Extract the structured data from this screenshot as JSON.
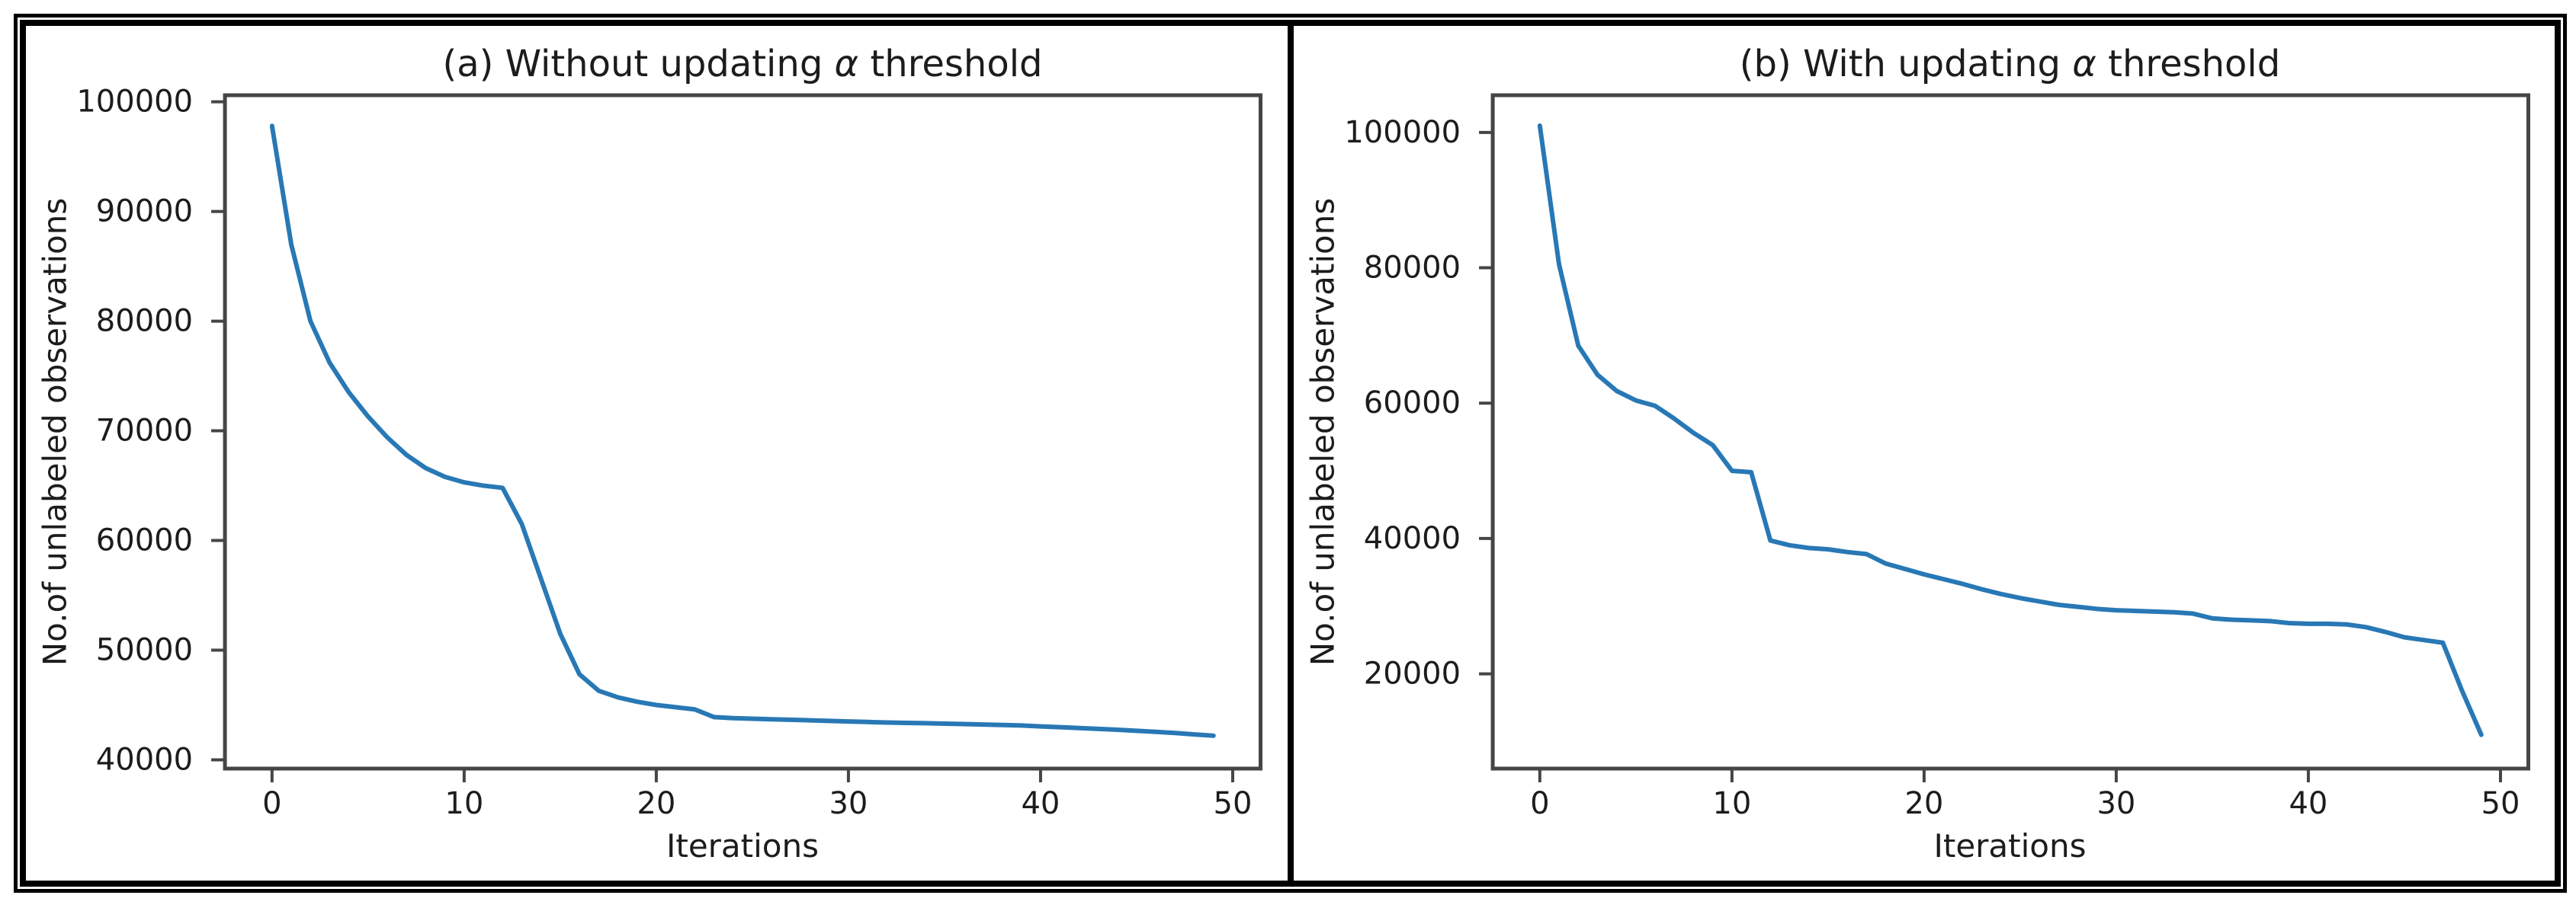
{
  "figure": {
    "background": "#ffffff",
    "outer_border_color": "#000000",
    "inner_border_color": "#000000",
    "divider_color": "#000000",
    "spine_color": "#454545",
    "tick_color": "#454545",
    "text_color": "#1c1c1c",
    "line_color": "#2878b5"
  },
  "chart_data": [
    {
      "type": "line",
      "panel_label": "a",
      "title": "(a) Without updating α threshold",
      "title_parts": {
        "prefix": "(a) Without updating ",
        "alpha": "α",
        "suffix": " threshold"
      },
      "xlabel": "Iterations",
      "ylabel": "No.of unlabeled observations",
      "xlim": [
        -2.45,
        51.45
      ],
      "ylim": [
        39200,
        100600
      ],
      "xticks": [
        0,
        10,
        20,
        30,
        40,
        50
      ],
      "yticks": [
        40000,
        50000,
        60000,
        70000,
        80000,
        90000,
        100000
      ],
      "grid": false,
      "legend": null,
      "x_start": 0,
      "x_step": 1,
      "y": [
        97800,
        87000,
        80000,
        76200,
        73500,
        71300,
        69400,
        67800,
        66600,
        65800,
        65300,
        65000,
        64800,
        61500,
        56500,
        51500,
        47800,
        46300,
        45700,
        45300,
        45000,
        44800,
        44600,
        43900,
        43800,
        43750,
        43700,
        43650,
        43600,
        43550,
        43500,
        43450,
        43400,
        43370,
        43340,
        43300,
        43260,
        43220,
        43180,
        43130,
        43050,
        42980,
        42900,
        42820,
        42740,
        42650,
        42550,
        42450,
        42320,
        42200
      ]
    },
    {
      "type": "line",
      "panel_label": "b",
      "title": "(b) With updating α threshold",
      "title_parts": {
        "prefix": "(b) With updating ",
        "alpha": "α",
        "suffix": " threshold"
      },
      "xlabel": "Iterations",
      "ylabel": "No.of unlabeled observations",
      "xlim": [
        -2.45,
        51.45
      ],
      "ylim": [
        6000,
        105500
      ],
      "xticks": [
        0,
        10,
        20,
        30,
        40,
        50
      ],
      "yticks": [
        20000,
        40000,
        60000,
        80000,
        100000
      ],
      "grid": false,
      "legend": null,
      "x_start": 0,
      "x_step": 1,
      "y": [
        101000,
        80500,
        68500,
        64200,
        61800,
        60400,
        59600,
        57700,
        55600,
        53800,
        50000,
        49800,
        39700,
        39000,
        38600,
        38400,
        38000,
        37700,
        36300,
        35500,
        34700,
        34000,
        33300,
        32500,
        31800,
        31200,
        30700,
        30200,
        29900,
        29600,
        29400,
        29300,
        29200,
        29100,
        28900,
        28200,
        28000,
        27900,
        27800,
        27500,
        27400,
        27400,
        27300,
        26900,
        26200,
        25400,
        25000,
        24600,
        17500,
        11000
      ]
    }
  ]
}
